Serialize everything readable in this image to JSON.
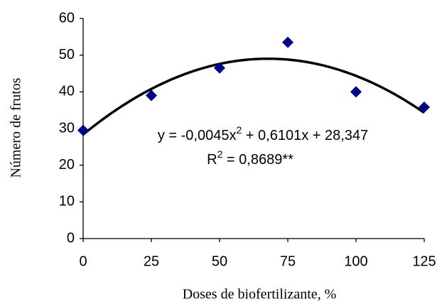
{
  "chart_data": {
    "type": "scatter",
    "x_label": "Doses de biofertilizante,  %",
    "y_label": "Número de frutos",
    "x": [
      0,
      25,
      50,
      75,
      100,
      125
    ],
    "values": [
      29.5,
      39,
      46.5,
      53.5,
      40,
      35.8
    ],
    "color": "#00008b",
    "xlim": [
      0,
      125
    ],
    "xticks": [
      0,
      25,
      50,
      75,
      100,
      125
    ],
    "ylim": [
      0,
      60
    ],
    "yticks": [
      0,
      10,
      20,
      30,
      40,
      50,
      60
    ],
    "grid": false,
    "fit": {
      "coefficients": [
        -0.0045,
        0.6101,
        28.347
      ],
      "color": "#000000",
      "equation": [
        "y = -0,0045x",
        "2",
        " + 0,6101x + 28,347"
      ],
      "r_squared": [
        "R",
        "2",
        " = 0,8689**"
      ]
    }
  }
}
